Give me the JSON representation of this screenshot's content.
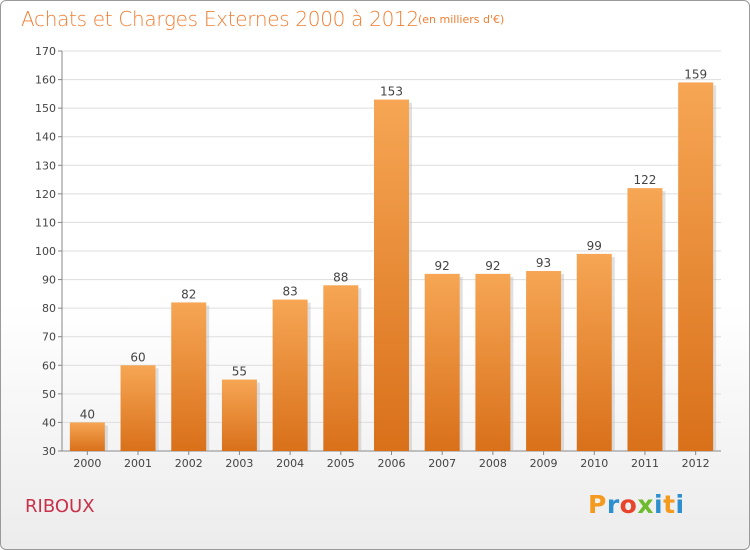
{
  "header": {
    "title": "Achats et Charges Externes 2000 à 2012",
    "unit": "(en milliers d'€)"
  },
  "footer": {
    "commune": "RIBOUX",
    "logo": [
      "P",
      "r",
      "o",
      "x",
      "i",
      "t",
      "i"
    ],
    "logo_colors": [
      "#f39a1f",
      "#2e8fd0",
      "#e8432b",
      "#6dbb2f",
      "#2e8fd0",
      "#f39a1f",
      "#2e8fd0"
    ]
  },
  "colors": {
    "bar_light": "#f6a654",
    "bar_dark": "#d9701a",
    "title": "#f07f33",
    "commune": "#c8314a"
  },
  "chart_data": {
    "type": "bar",
    "title": "Achats et Charges Externes 2000 à 2012",
    "subtitle": "(en milliers d'€)",
    "categories": [
      "2000",
      "2001",
      "2002",
      "2003",
      "2004",
      "2005",
      "2006",
      "2007",
      "2008",
      "2009",
      "2010",
      "2011",
      "2012"
    ],
    "values": [
      40,
      60,
      82,
      55,
      83,
      88,
      153,
      92,
      92,
      93,
      99,
      122,
      159
    ],
    "ylim": [
      30,
      170
    ],
    "yticks": [
      30,
      40,
      50,
      60,
      70,
      80,
      90,
      100,
      110,
      120,
      130,
      140,
      150,
      160,
      170
    ],
    "grid": true,
    "legend": "none"
  }
}
